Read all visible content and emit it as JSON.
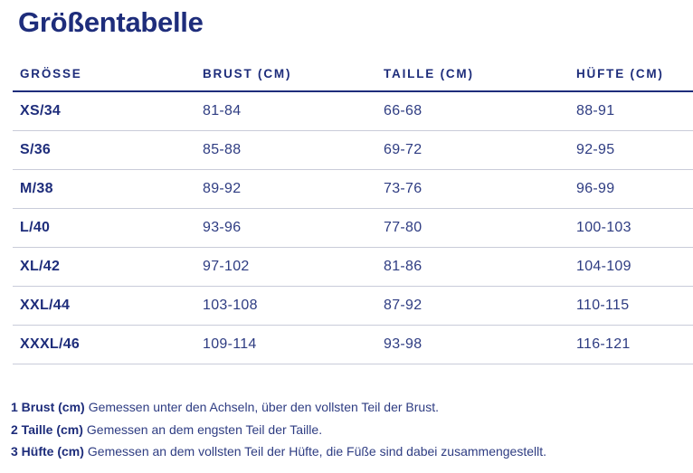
{
  "page": {
    "title": "Größentabelle"
  },
  "colors": {
    "navy_dark": "#1e2d7b",
    "navy_text": "#2e3c82",
    "separator_light": "#c9ccd9",
    "background": "#ffffff"
  },
  "table": {
    "headers": [
      "GRÖSSE",
      "BRUST (CM)",
      "TAILLE (CM)",
      "HÜFTE (CM)"
    ],
    "rows": [
      {
        "size": "XS/34",
        "brust": "81-84",
        "taille": "66-68",
        "huefte": "88-91"
      },
      {
        "size": "S/36",
        "brust": "85-88",
        "taille": "69-72",
        "huefte": "92-95"
      },
      {
        "size": "M/38",
        "brust": "89-92",
        "taille": "73-76",
        "huefte": "96-99"
      },
      {
        "size": "L/40",
        "brust": "93-96",
        "taille": "77-80",
        "huefte": "100-103"
      },
      {
        "size": "XL/42",
        "brust": "97-102",
        "taille": "81-86",
        "huefte": "104-109"
      },
      {
        "size": "XXL/44",
        "brust": "103-108",
        "taille": "87-92",
        "huefte": "110-115"
      },
      {
        "size": "XXXL/46",
        "brust": "109-114",
        "taille": "93-98",
        "huefte": "116-121"
      }
    ]
  },
  "footnotes": [
    {
      "label": "1 Brust (cm)",
      "text": "Gemessen unter den Achseln, über den vollsten Teil der Brust."
    },
    {
      "label": "2 Taille (cm)",
      "text": "Gemessen an dem engsten Teil der Taille."
    },
    {
      "label": "3 Hüfte (cm)",
      "text": "Gemessen an dem vollsten Teil der Hüfte, die Füße sind dabei zusammengestellt."
    }
  ]
}
